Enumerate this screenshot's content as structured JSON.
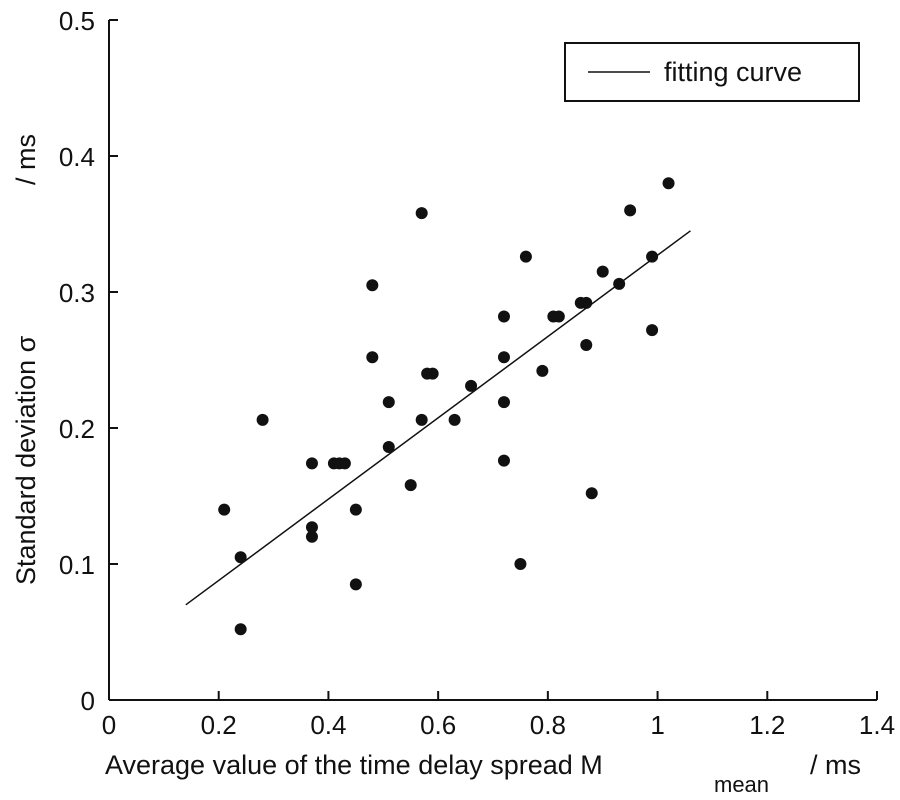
{
  "chart_data": {
    "type": "scatter",
    "xlabel": {
      "main": "Average value of the time delay spread M",
      "subscript": "mean",
      "unit": "/ ms"
    },
    "ylabel": {
      "main": "Standard deviation σ",
      "unit": "/ ms"
    },
    "xlim": [
      0,
      1.4
    ],
    "ylim": [
      0,
      0.5
    ],
    "xticks": [
      {
        "value": 0,
        "label": "0"
      },
      {
        "value": 0.2,
        "label": "0.2"
      },
      {
        "value": 0.4,
        "label": "0.4"
      },
      {
        "value": 0.6,
        "label": "0.6"
      },
      {
        "value": 0.8,
        "label": "0.8"
      },
      {
        "value": 1.0,
        "label": "1"
      },
      {
        "value": 1.2,
        "label": "1.2"
      },
      {
        "value": 1.4,
        "label": "1.4"
      }
    ],
    "yticks": [
      {
        "value": 0,
        "label": "0"
      },
      {
        "value": 0.1,
        "label": "0.1"
      },
      {
        "value": 0.2,
        "label": "0.2"
      },
      {
        "value": 0.3,
        "label": "0.3"
      },
      {
        "value": 0.4,
        "label": "0.4"
      },
      {
        "value": 0.5,
        "label": "0.5"
      }
    ],
    "grid": false,
    "legend": {
      "position": "top-right",
      "entries": [
        "fitting curve"
      ]
    },
    "series": [
      {
        "kind": "points",
        "color": "#111111",
        "points": [
          [
            0.21,
            0.14
          ],
          [
            0.24,
            0.105
          ],
          [
            0.24,
            0.052
          ],
          [
            0.28,
            0.206
          ],
          [
            0.37,
            0.174
          ],
          [
            0.37,
            0.127
          ],
          [
            0.37,
            0.12
          ],
          [
            0.41,
            0.174
          ],
          [
            0.42,
            0.174
          ],
          [
            0.43,
            0.174
          ],
          [
            0.45,
            0.14
          ],
          [
            0.45,
            0.085
          ],
          [
            0.48,
            0.305
          ],
          [
            0.48,
            0.252
          ],
          [
            0.51,
            0.219
          ],
          [
            0.51,
            0.186
          ],
          [
            0.55,
            0.158
          ],
          [
            0.57,
            0.358
          ],
          [
            0.57,
            0.206
          ],
          [
            0.58,
            0.24
          ],
          [
            0.59,
            0.24
          ],
          [
            0.63,
            0.206
          ],
          [
            0.66,
            0.231
          ],
          [
            0.72,
            0.282
          ],
          [
            0.72,
            0.252
          ],
          [
            0.72,
            0.219
          ],
          [
            0.72,
            0.176
          ],
          [
            0.75,
            0.1
          ],
          [
            0.76,
            0.326
          ],
          [
            0.79,
            0.242
          ],
          [
            0.81,
            0.282
          ],
          [
            0.82,
            0.282
          ],
          [
            0.86,
            0.292
          ],
          [
            0.87,
            0.292
          ],
          [
            0.87,
            0.261
          ],
          [
            0.88,
            0.152
          ],
          [
            0.9,
            0.315
          ],
          [
            0.93,
            0.306
          ],
          [
            0.95,
            0.36
          ],
          [
            0.99,
            0.326
          ],
          [
            0.99,
            0.272
          ],
          [
            1.02,
            0.38
          ]
        ]
      },
      {
        "name": "fitting curve",
        "kind": "line",
        "color": "#111111",
        "x": [
          0.14,
          1.06
        ],
        "y": [
          0.07,
          0.345
        ]
      }
    ]
  }
}
